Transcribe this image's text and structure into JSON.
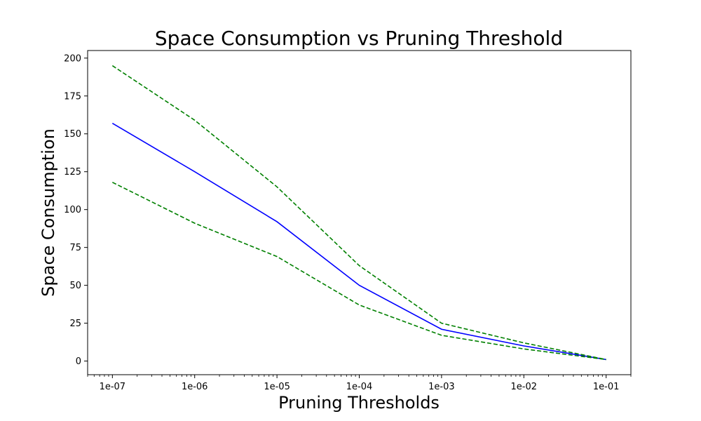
{
  "chart_data": {
    "type": "line",
    "title": "Space Consumption vs Pruning Threshold",
    "xlabel": "Pruning Thresholds",
    "ylabel": "Space Consumption",
    "xscale": "log",
    "x": [
      1e-07,
      1e-06,
      1e-05,
      0.0001,
      0.001,
      0.01,
      0.1
    ],
    "xtick_labels": [
      "1e-07",
      "1e-06",
      "1e-05",
      "1e-04",
      "1e-03",
      "1e-02",
      "1e-01"
    ],
    "xlim": [
      5e-08,
      0.2
    ],
    "ylim": [
      -9,
      205
    ],
    "yticks": [
      0,
      25,
      50,
      75,
      100,
      125,
      150,
      175,
      200
    ],
    "grid": false,
    "legend": "none",
    "series": [
      {
        "values": [
          157,
          125,
          92,
          50,
          21,
          10,
          1
        ],
        "color": "#0000ff",
        "style": "solid"
      },
      {
        "values": [
          195,
          159,
          115,
          63,
          25,
          12,
          1
        ],
        "color": "#008000",
        "style": "dashed"
      },
      {
        "values": [
          118,
          91,
          69,
          37,
          17,
          8,
          1
        ],
        "color": "#008000",
        "style": "dashed"
      }
    ]
  }
}
